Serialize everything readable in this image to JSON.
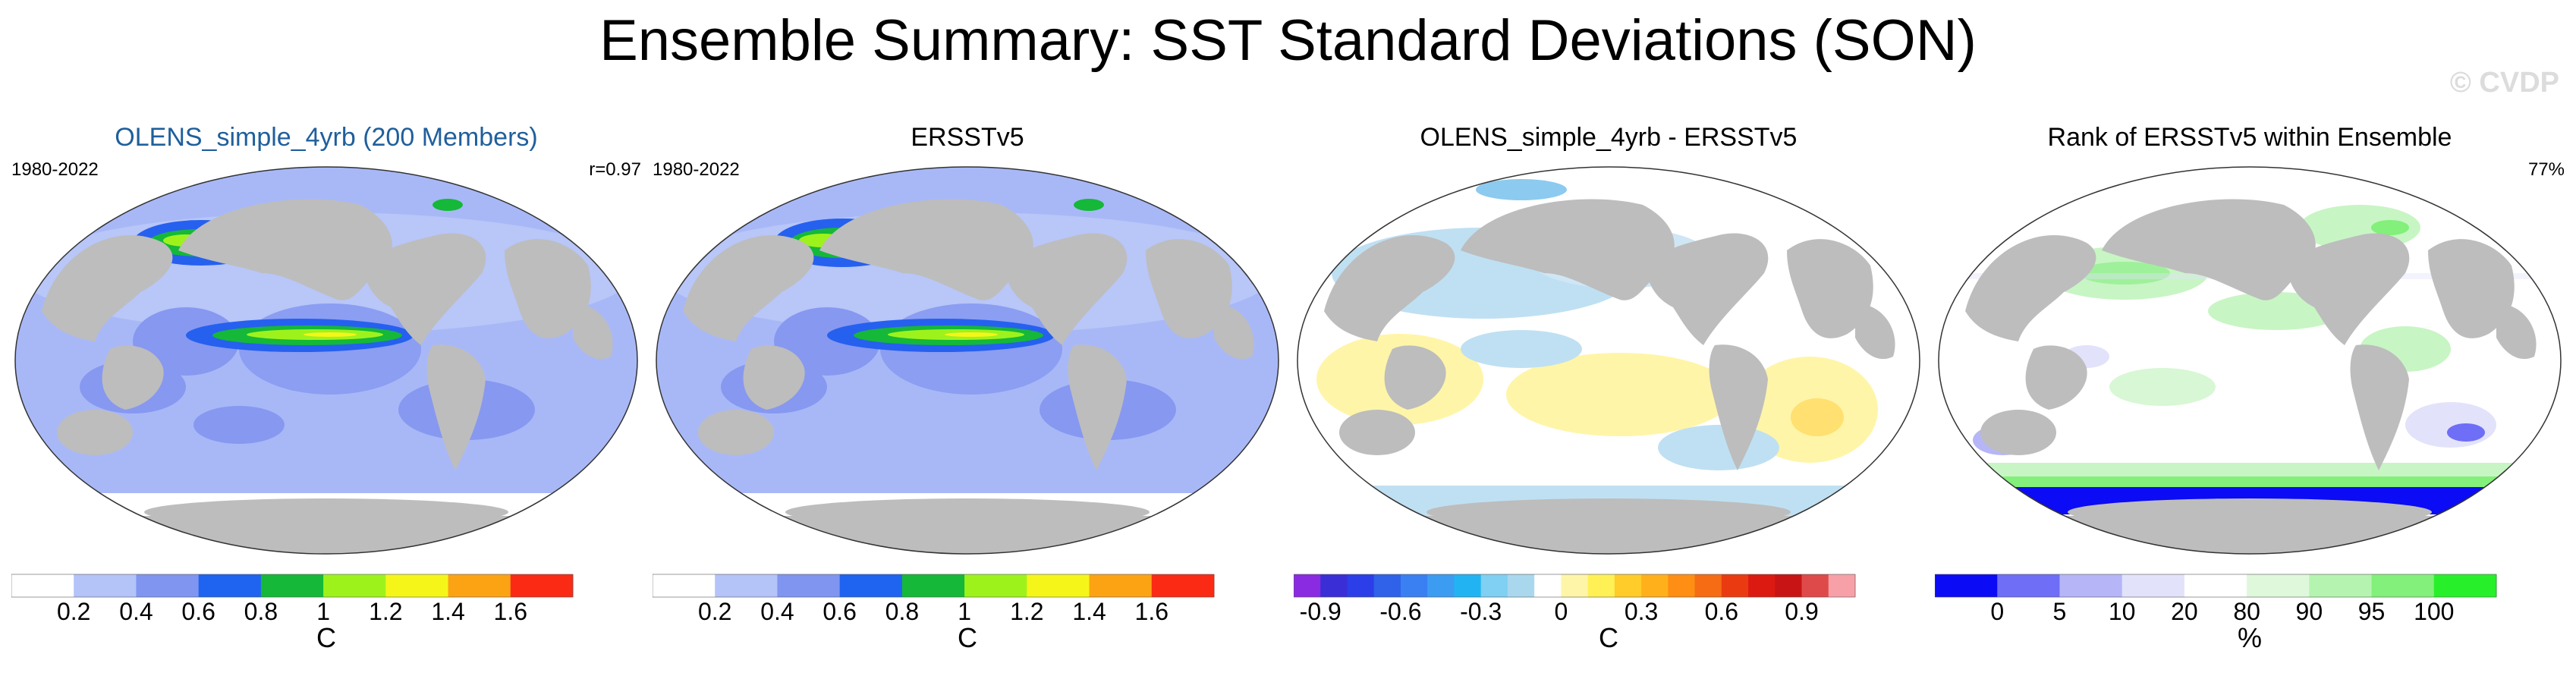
{
  "title": "Ensemble Summary: SST Standard Deviations (SON)",
  "copyright": "© CVDP",
  "colors": {
    "land": "#bdbdbd",
    "ocean_base_left": "#a8b8f7",
    "title_blue": "#1f5f9c"
  },
  "chart_data": [
    {
      "type": "heatmap",
      "title": "OLENS_simple_4yrb (200 Members)",
      "period": "1980-2022",
      "stat": "r=0.97",
      "units": "C",
      "colorbar": {
        "boundaries": [
          0.2,
          0.4,
          0.6,
          0.8,
          1,
          1.2,
          1.4,
          1.6
        ],
        "tick_labels": [
          "0.2",
          "0.4",
          "0.6",
          "0.8",
          "1",
          "1.2",
          "1.4",
          "1.6"
        ],
        "colors": [
          "#ffffff",
          "#b4c3f8",
          "#7f95f0",
          "#1f64f0",
          "#15b838",
          "#9ef21c",
          "#f5f51a",
          "#fca314",
          "#fa2a14"
        ]
      }
    },
    {
      "type": "heatmap",
      "title": "ERSSTv5",
      "period": "1980-2022",
      "units": "C",
      "colorbar": {
        "boundaries": [
          0.2,
          0.4,
          0.6,
          0.8,
          1,
          1.2,
          1.4,
          1.6
        ],
        "tick_labels": [
          "0.2",
          "0.4",
          "0.6",
          "0.8",
          "1",
          "1.2",
          "1.4",
          "1.6"
        ],
        "colors": [
          "#ffffff",
          "#b4c3f8",
          "#7f95f0",
          "#1f64f0",
          "#15b838",
          "#9ef21c",
          "#f5f51a",
          "#fca314",
          "#fa2a14"
        ]
      }
    },
    {
      "type": "heatmap",
      "title": "OLENS_simple_4yrb - ERSSTv5",
      "units": "C",
      "colorbar": {
        "boundaries": [
          -0.9,
          -0.8,
          -0.7,
          -0.6,
          -0.5,
          -0.4,
          -0.3,
          -0.2,
          -0.1,
          0,
          0.1,
          0.2,
          0.3,
          0.4,
          0.5,
          0.6,
          0.7,
          0.8,
          0.9
        ],
        "tick_labels": [
          "-0.9",
          "-0.6",
          "-0.3",
          "0",
          "0.3",
          "0.6",
          "0.9"
        ],
        "tick_values": [
          -0.9,
          -0.6,
          -0.3,
          0,
          0.3,
          0.6,
          0.9
        ],
        "colors": [
          "#8a2be2",
          "#3a2ed6",
          "#2b3ee8",
          "#2f62e8",
          "#3a80f2",
          "#3c9cf2",
          "#22b4f2",
          "#7fd0f2",
          "#a9d8ee",
          "#ffffff",
          "#fff5a8",
          "#fff056",
          "#ffcc2a",
          "#ffb01a",
          "#fe8e14",
          "#f56c14",
          "#ea3a12",
          "#dc1a12",
          "#c81414",
          "#de4a4a",
          "#f7a0a8"
        ]
      }
    },
    {
      "type": "heatmap",
      "title": "Rank of ERSSTv5 within Ensemble",
      "stat": "77%",
      "units": "%",
      "colorbar": {
        "boundaries": [
          0,
          5,
          10,
          20,
          80,
          90,
          95,
          100
        ],
        "tick_labels": [
          "0",
          "5",
          "10",
          "20",
          "80",
          "90",
          "95",
          "100"
        ],
        "colors": [
          "#0b0bf5",
          "#6e6ef7",
          "#b5b5f8",
          "#e2e2fb",
          "#ffffff",
          "#dff8dc",
          "#b4f4b0",
          "#82f07a",
          "#27f02a"
        ]
      }
    }
  ]
}
